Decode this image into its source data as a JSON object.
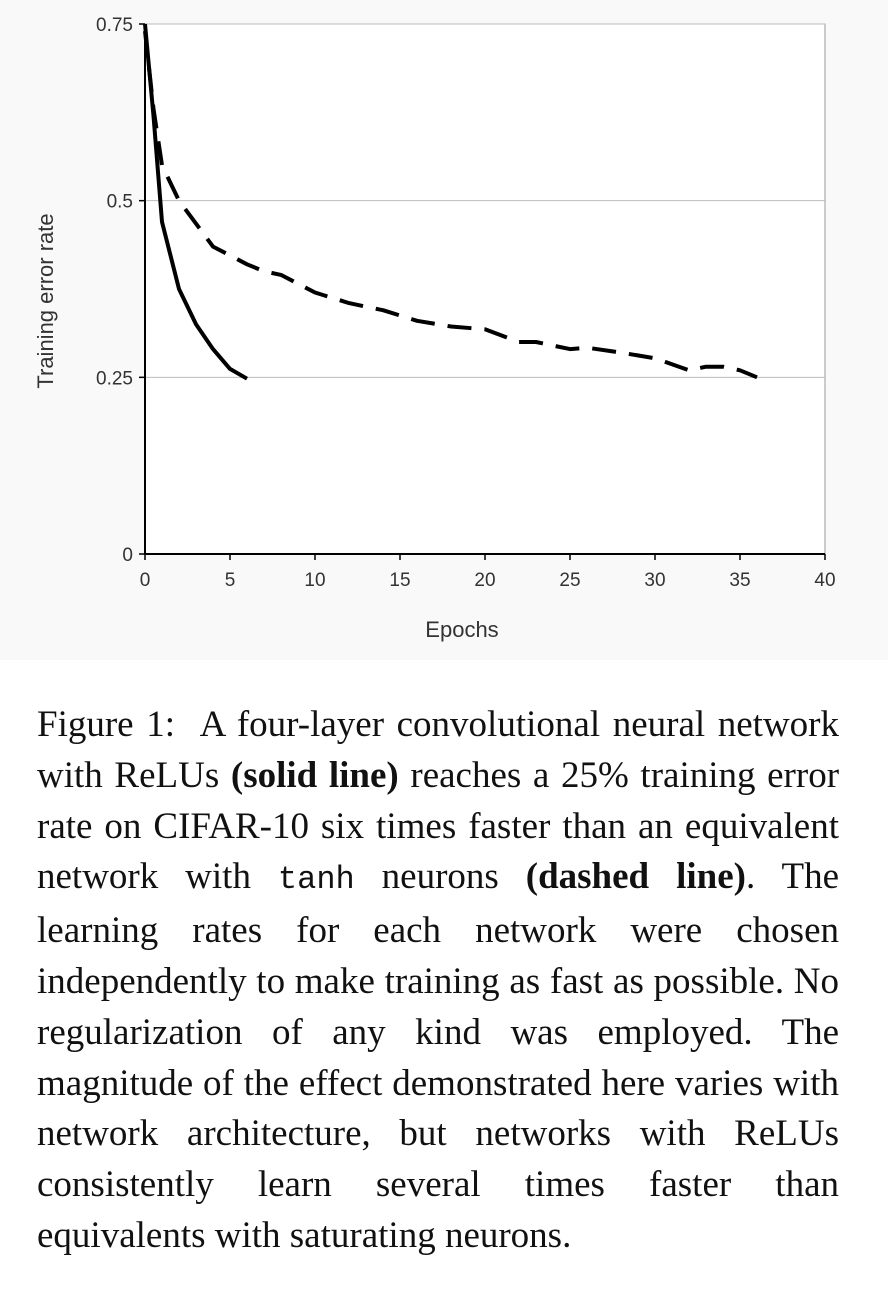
{
  "chart_data": {
    "type": "line",
    "xlabel": "Epochs",
    "ylabel": "Training error rate",
    "xlim": [
      0,
      40
    ],
    "ylim": [
      0,
      0.75
    ],
    "xticks": [
      "0",
      "5",
      "10",
      "15",
      "20",
      "25",
      "30",
      "35",
      "40"
    ],
    "yticks": [
      "0",
      "0.25",
      "0.5",
      "0.75"
    ],
    "grid": "horizontal",
    "series": [
      {
        "style": "solid",
        "color": "#000000",
        "x": [
          0,
          0.5,
          1,
          2,
          3,
          4,
          5,
          6
        ],
        "y": [
          0.75,
          0.62,
          0.47,
          0.375,
          0.325,
          0.29,
          0.262,
          0.248
        ]
      },
      {
        "style": "dashed",
        "color": "#000000",
        "x": [
          0,
          0.5,
          1,
          2,
          4,
          6,
          7,
          8,
          10,
          12,
          14,
          16,
          18,
          20,
          22,
          23,
          25,
          26,
          28,
          30,
          32,
          33,
          34,
          35,
          36
        ],
        "y": [
          0.74,
          0.63,
          0.55,
          0.5,
          0.435,
          0.41,
          0.4,
          0.395,
          0.37,
          0.355,
          0.345,
          0.33,
          0.322,
          0.318,
          0.3,
          0.3,
          0.29,
          0.292,
          0.285,
          0.277,
          0.26,
          0.265,
          0.265,
          0.26,
          0.25
        ]
      }
    ]
  },
  "caption": {
    "figure_label": "Figure 1:",
    "text_1": "A four-layer convolutional neural network with ReLUs",
    "bold_1": "(solid line)",
    "text_2": "reaches a 25% training error rate on CIFAR-10 six times faster than an equivalent network with",
    "mono": "tanh",
    "text_3": "neurons",
    "bold_2": "(dashed line)",
    "text_4": ". The learning rates for each net­work were chosen independently to make train­ing as fast as possible.  No regularization of any kind was employed. The magnitude of the effect demonstrated here varies with network architecture, but networks with ReLUs consis­tently learn several times faster than equivalents with saturating neurons."
  },
  "colors": {
    "plot_background": "#ffffff",
    "outer_background": "#f9f9f9",
    "gridline": "#bbbbbb",
    "frame": "#999999",
    "axis": "#000000"
  }
}
